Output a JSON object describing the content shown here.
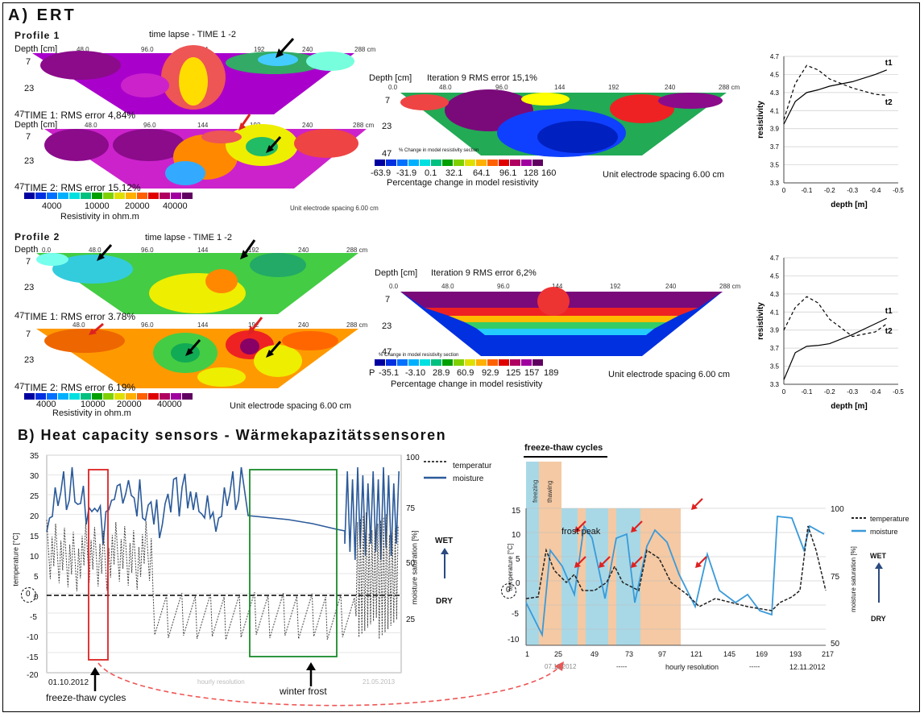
{
  "sectionA": {
    "title": "A) ERT"
  },
  "profile1": {
    "label": "Profile 1",
    "timelapse": "time lapse - TIME 1 -2",
    "depth_label": "Depth [cm]",
    "xticks": [
      "48.0",
      "96.0",
      "144",
      "192",
      "240",
      "288 cm"
    ],
    "depths": [
      "7",
      "23",
      "47"
    ],
    "time1": "TIME 1: RMS error 4,84%",
    "time2": "TIME 2: RMS error 15,12%",
    "legend_vals": [
      "4000",
      "10000",
      "20000",
      "40000"
    ],
    "legend_unit": "Resistivity in ohm.m",
    "spacing_small": "Unit electrode spacing 6.00 cm",
    "iter": "Iteration 9 RMS error 15,1%",
    "iter_depth": "Depth [cm]",
    "iter_xticks": [
      "0.0",
      "48.0",
      "96.0",
      "144",
      "192",
      "240",
      "288 cm"
    ],
    "pct_small": "% Change in model resistivity section",
    "pct_vals": [
      "-63.9",
      "-31.9",
      "0.1",
      "32.1",
      "64.1",
      "96.1",
      "128",
      "160"
    ],
    "pct_label": "Percentage change in model resistivity",
    "spacing": "Unit electrode spacing 6.00 cm"
  },
  "profile2": {
    "label": "Profile 2",
    "timelapse": "time lapse - TIME 1 -2",
    "depth_label": "Depth",
    "xticks": [
      "0.0",
      "48.0",
      "96.0",
      "144",
      "192",
      "240",
      "288 cm"
    ],
    "depths": [
      "7",
      "23",
      "47"
    ],
    "time1": "TIME 1: RMS error 3.78%",
    "time2": "TIME 2: RMS error 6.19%",
    "legend_vals": [
      "4000",
      "10000",
      "20000",
      "40000"
    ],
    "legend_unit": "Resistivity in ohm.m",
    "spacing": "Unit electrode spacing 6.00 cm",
    "iter": "Iteration 9 RMS error 6,2%",
    "iter_depth": "Depth [cm]",
    "iter_xticks": [
      "0.0",
      "48.0",
      "96.0",
      "144",
      "192",
      "240",
      "288 cm"
    ],
    "pct_small": "% Change in model resistivity section",
    "pct_prefix": "P",
    "pct_vals": [
      "-35.1",
      "-3.10",
      "28.9",
      "60.9",
      "92.9",
      "125",
      "157",
      "189"
    ],
    "pct_label": "Percentage change in model resistivity",
    "spacing2": "Unit electrode spacing 6.00 cm"
  },
  "sectionB": {
    "title": "B) Heat capacity sensors - Wärmekapazitätssensoren"
  },
  "chartLeft": {
    "y_left_ticks": [
      "35",
      "30",
      "25",
      "20",
      "15",
      "10",
      "5",
      "0",
      "-5",
      "-10",
      "-15",
      "-20"
    ],
    "y_right_ticks": [
      "100",
      "75",
      "50",
      "25"
    ],
    "ylabel_left": "temperature [°C]",
    "ylabel_right": "moisture saturation [%]",
    "legend_temp": "temperatur",
    "legend_moist": "moisture",
    "wet": "WET",
    "dry": "DRY",
    "zero": "0",
    "date_start": "01.10.2012",
    "x_mid": "hourly resolution",
    "date_end": "21.05.2013",
    "annot_freeze": "freeze-thaw cycles",
    "annot_winter": "winter frost"
  },
  "chartRight": {
    "heading": "freeze-thaw cycles",
    "band_freezing": "freezing",
    "band_thawing": "thawing",
    "y_left_ticks": [
      "15",
      "10",
      "5",
      "0",
      "-5",
      "-10"
    ],
    "y_right_ticks": [
      "100",
      "75",
      "50"
    ],
    "x_ticks": [
      "1",
      "25",
      "49",
      "73",
      "97",
      "121",
      "145",
      "169",
      "193",
      "217"
    ],
    "ylabel_left": "temperature [°C]",
    "ylabel_right": "moisture saturation [%]",
    "legend_temp": "temperature",
    "legend_moist": "moisture",
    "wet": "WET",
    "dry": "DRY",
    "zero": "0",
    "frost_peak": "frost peak",
    "date_start": "07.11.2012",
    "dash1": "-----",
    "x_mid": "hourly resolution",
    "dash2": "-----",
    "date_end": "12.11.2012"
  },
  "chartsSmall": {
    "top": {
      "yticks": [
        "4.7",
        "4.5",
        "4.3",
        "4.1",
        "3.9",
        "3.7",
        "3.5",
        "3.3"
      ],
      "xticks": [
        "0",
        "-0.1",
        "-0.2",
        "-0.3",
        "-0.4",
        "-0.5"
      ],
      "ylabel": "resistivity",
      "xlabel": "depth [m]",
      "l1": "t1",
      "l2": "t2"
    },
    "bottom": {
      "yticks": [
        "4.7",
        "4.5",
        "4.3",
        "4.1",
        "3.9",
        "3.7",
        "3.5",
        "3.3"
      ],
      "xticks": [
        "0",
        "-0.1",
        "-0.2",
        "-0.3",
        "-0.4",
        "-0.5"
      ],
      "ylabel": "resistivity",
      "xlabel": "depth [m]",
      "l1": "t1",
      "l2": "t2"
    }
  },
  "chart_data": [
    {
      "type": "line",
      "x": [
        0,
        -0.05,
        -0.1,
        -0.15,
        -0.2,
        -0.3,
        -0.4,
        -0.45
      ],
      "series": [
        {
          "name": "t1",
          "values": [
            3.95,
            4.2,
            4.3,
            4.33,
            4.37,
            4.42,
            4.5,
            4.55
          ]
        },
        {
          "name": "t2",
          "values": [
            4.0,
            4.4,
            4.6,
            4.55,
            4.45,
            4.35,
            4.28,
            4.27
          ]
        }
      ],
      "xlabel": "depth [m]",
      "ylabel": "resistivity",
      "ylim": [
        3.3,
        4.7
      ],
      "xlim": [
        0,
        -0.5
      ]
    },
    {
      "type": "line",
      "x": [
        0,
        -0.05,
        -0.1,
        -0.15,
        -0.2,
        -0.3,
        -0.4,
        -0.45
      ],
      "series": [
        {
          "name": "t1",
          "values": [
            3.35,
            3.65,
            3.72,
            3.73,
            3.75,
            3.85,
            3.97,
            4.03
          ]
        },
        {
          "name": "t2",
          "values": [
            3.9,
            4.15,
            4.27,
            4.2,
            4.02,
            3.83,
            3.88,
            3.97
          ]
        }
      ],
      "xlabel": "depth [m]",
      "ylabel": "resistivity",
      "ylim": [
        3.3,
        4.7
      ],
      "xlim": [
        0,
        -0.5
      ]
    }
  ]
}
